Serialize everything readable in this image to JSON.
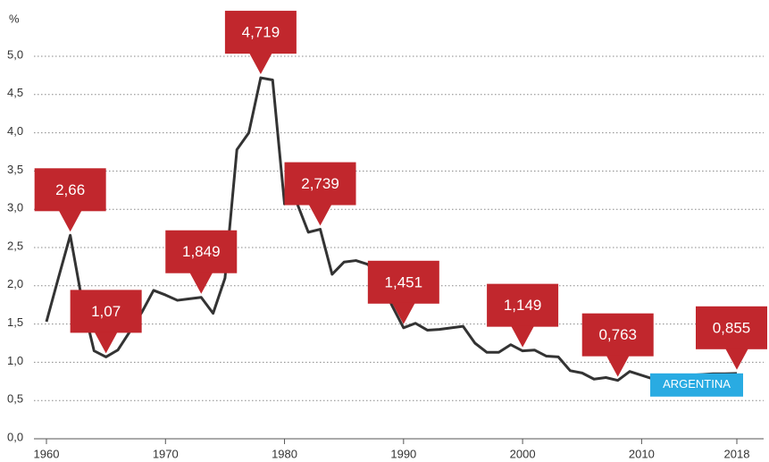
{
  "chart_data": {
    "type": "line",
    "y_label": "%",
    "x": [
      1960,
      1961,
      1962,
      1963,
      1964,
      1965,
      1966,
      1967,
      1968,
      1969,
      1970,
      1971,
      1972,
      1973,
      1974,
      1975,
      1976,
      1977,
      1978,
      1979,
      1980,
      1981,
      1982,
      1983,
      1984,
      1985,
      1986,
      1987,
      1988,
      1989,
      1990,
      1991,
      1992,
      1993,
      1994,
      1995,
      1996,
      1997,
      1998,
      1999,
      2000,
      2001,
      2002,
      2003,
      2004,
      2005,
      2006,
      2007,
      2008,
      2009,
      2010,
      2011,
      2012,
      2013,
      2014,
      2015,
      2016,
      2017,
      2018
    ],
    "series": [
      {
        "name": "ARGENTINA",
        "color": "#333333",
        "label_color": "#29abe2",
        "callout_color": "#c1272d",
        "values": [
          1.53,
          2.1,
          2.66,
          1.8,
          1.15,
          1.07,
          1.16,
          1.4,
          1.65,
          1.94,
          1.88,
          1.81,
          1.83,
          1.849,
          1.64,
          2.1,
          3.78,
          4.0,
          4.719,
          4.69,
          3.07,
          3.1,
          2.7,
          2.739,
          2.15,
          2.31,
          2.33,
          2.28,
          2.1,
          1.75,
          1.451,
          1.51,
          1.42,
          1.43,
          1.45,
          1.47,
          1.25,
          1.13,
          1.13,
          1.23,
          1.149,
          1.16,
          1.08,
          1.07,
          0.89,
          0.86,
          0.78,
          0.8,
          0.763,
          0.88,
          0.83,
          0.78,
          0.8,
          0.82,
          0.83,
          0.84,
          0.85,
          0.85,
          0.855
        ],
        "value_labels": [
          null,
          null,
          "2,66",
          null,
          null,
          "1,07",
          null,
          null,
          null,
          null,
          null,
          null,
          null,
          "1,849",
          null,
          null,
          null,
          null,
          "4,719",
          null,
          null,
          null,
          null,
          "2,739",
          null,
          null,
          null,
          null,
          null,
          null,
          "1,451",
          null,
          null,
          null,
          null,
          null,
          null,
          null,
          null,
          null,
          "1,149",
          null,
          null,
          null,
          null,
          null,
          null,
          null,
          "0,763",
          null,
          null,
          null,
          null,
          null,
          null,
          null,
          null,
          null,
          "0,855"
        ]
      }
    ],
    "xlim": [
      1960,
      2018
    ],
    "xticks": [
      1960,
      1970,
      1980,
      1990,
      2000,
      2010,
      2018
    ],
    "ylim": [
      0,
      5.0
    ],
    "yticks": [
      {
        "value": 0,
        "label": "0,0"
      },
      {
        "value": 0.5,
        "label": "0,5"
      },
      {
        "value": 1.0,
        "label": "1,0"
      },
      {
        "value": 1.5,
        "label": "1,5"
      },
      {
        "value": 2.0,
        "label": "2,0"
      },
      {
        "value": 2.5,
        "label": "2,5"
      },
      {
        "value": 3.0,
        "label": "3,0"
      },
      {
        "value": 3.5,
        "label": "3,5"
      },
      {
        "value": 4.0,
        "label": "4,0"
      },
      {
        "value": 4.5,
        "label": "4,5"
      },
      {
        "value": 5.0,
        "label": "5,0"
      }
    ],
    "grid": true
  }
}
